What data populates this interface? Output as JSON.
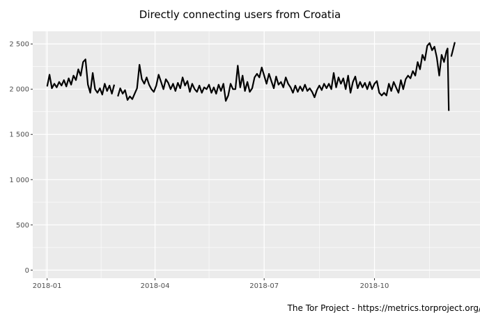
{
  "chart_data": {
    "type": "line",
    "title": "Directly connecting users from Croatia",
    "caption": "The Tor Project - https://metrics.torproject.org/",
    "xlabel": "",
    "ylabel": "",
    "x_ticks": [
      "2018-01",
      "2018-04",
      "2018-07",
      "2018-10"
    ],
    "y_ticks": [
      "0",
      "500",
      "1 000",
      "1 500",
      "2 000",
      "2 500"
    ],
    "ylim": [
      -90,
      2640
    ],
    "xlim": [
      "2017-12-20",
      "2018-12-28"
    ],
    "grid": true,
    "background": "#ebebeb",
    "line_color": "#000000",
    "series": [
      {
        "points": [
          [
            "2018-01-01",
            2030
          ],
          [
            "2018-01-03",
            2160
          ],
          [
            "2018-01-05",
            2010
          ],
          [
            "2018-01-07",
            2060
          ],
          [
            "2018-01-09",
            2020
          ],
          [
            "2018-01-11",
            2080
          ],
          [
            "2018-01-13",
            2040
          ],
          [
            "2018-01-15",
            2100
          ],
          [
            "2018-01-17",
            2030
          ],
          [
            "2018-01-19",
            2120
          ],
          [
            "2018-01-21",
            2050
          ],
          [
            "2018-01-23",
            2150
          ],
          [
            "2018-01-25",
            2100
          ],
          [
            "2018-01-27",
            2220
          ],
          [
            "2018-01-29",
            2150
          ],
          [
            "2018-01-31",
            2300
          ],
          [
            "2018-02-02",
            2330
          ],
          [
            "2018-02-04",
            2050
          ],
          [
            "2018-02-06",
            1960
          ],
          [
            "2018-02-08",
            2180
          ],
          [
            "2018-02-10",
            2000
          ],
          [
            "2018-02-12",
            1960
          ],
          [
            "2018-02-14",
            2010
          ],
          [
            "2018-02-16",
            1940
          ],
          [
            "2018-02-18",
            2060
          ],
          [
            "2018-02-20",
            1980
          ],
          [
            "2018-02-22",
            2040
          ],
          [
            "2018-02-24",
            1950
          ],
          [
            "2018-02-26",
            2050
          ],
          null,
          [
            "2018-03-01",
            1920
          ],
          [
            "2018-03-03",
            2010
          ],
          [
            "2018-03-05",
            1950
          ],
          [
            "2018-03-07",
            1990
          ],
          [
            "2018-03-09",
            1880
          ],
          [
            "2018-03-11",
            1920
          ],
          [
            "2018-03-13",
            1890
          ],
          [
            "2018-03-15",
            1950
          ],
          [
            "2018-03-17",
            2010
          ],
          [
            "2018-03-19",
            2270
          ],
          [
            "2018-03-21",
            2110
          ],
          [
            "2018-03-23",
            2060
          ],
          [
            "2018-03-25",
            2130
          ],
          [
            "2018-03-27",
            2050
          ],
          [
            "2018-03-29",
            2000
          ],
          [
            "2018-03-31",
            1970
          ],
          [
            "2018-04-02",
            2040
          ],
          [
            "2018-04-04",
            2160
          ],
          [
            "2018-04-06",
            2080
          ],
          [
            "2018-04-08",
            2000
          ],
          [
            "2018-04-10",
            2110
          ],
          [
            "2018-04-12",
            2070
          ],
          [
            "2018-04-14",
            2000
          ],
          [
            "2018-04-16",
            2060
          ],
          [
            "2018-04-18",
            1980
          ],
          [
            "2018-04-20",
            2070
          ],
          [
            "2018-04-22",
            2010
          ],
          [
            "2018-04-24",
            2130
          ],
          [
            "2018-04-26",
            2040
          ],
          [
            "2018-04-28",
            2090
          ],
          [
            "2018-04-30",
            1970
          ],
          [
            "2018-05-02",
            2060
          ],
          [
            "2018-05-04",
            2000
          ],
          [
            "2018-05-06",
            1970
          ],
          [
            "2018-05-08",
            2040
          ],
          [
            "2018-05-10",
            1960
          ],
          [
            "2018-05-12",
            2020
          ],
          [
            "2018-05-14",
            2000
          ],
          [
            "2018-05-16",
            2050
          ],
          [
            "2018-05-18",
            1960
          ],
          [
            "2018-05-20",
            2020
          ],
          [
            "2018-05-22",
            1950
          ],
          [
            "2018-05-24",
            2050
          ],
          [
            "2018-05-26",
            1980
          ],
          [
            "2018-05-28",
            2060
          ],
          [
            "2018-05-30",
            1870
          ],
          [
            "2018-06-01",
            1930
          ],
          [
            "2018-06-03",
            2060
          ],
          [
            "2018-06-05",
            2000
          ],
          [
            "2018-06-07",
            2000
          ],
          [
            "2018-06-09",
            2260
          ],
          [
            "2018-06-11",
            2020
          ],
          [
            "2018-06-13",
            2150
          ],
          [
            "2018-06-15",
            1980
          ],
          [
            "2018-06-17",
            2080
          ],
          [
            "2018-06-19",
            1970
          ],
          [
            "2018-06-21",
            2010
          ],
          [
            "2018-06-23",
            2130
          ],
          [
            "2018-06-25",
            2170
          ],
          [
            "2018-06-27",
            2130
          ],
          [
            "2018-06-29",
            2240
          ],
          [
            "2018-07-01",
            2150
          ],
          [
            "2018-07-03",
            2060
          ],
          [
            "2018-07-05",
            2170
          ],
          [
            "2018-07-07",
            2090
          ],
          [
            "2018-07-09",
            2010
          ],
          [
            "2018-07-11",
            2140
          ],
          [
            "2018-07-13",
            2050
          ],
          [
            "2018-07-15",
            2080
          ],
          [
            "2018-07-17",
            2020
          ],
          [
            "2018-07-19",
            2130
          ],
          [
            "2018-07-21",
            2060
          ],
          [
            "2018-07-23",
            2020
          ],
          [
            "2018-07-25",
            1960
          ],
          [
            "2018-07-27",
            2040
          ],
          [
            "2018-07-29",
            1970
          ],
          [
            "2018-07-31",
            2030
          ],
          [
            "2018-08-02",
            1980
          ],
          [
            "2018-08-04",
            2050
          ],
          [
            "2018-08-06",
            1980
          ],
          [
            "2018-08-08",
            2010
          ],
          [
            "2018-08-10",
            1970
          ],
          [
            "2018-08-12",
            1910
          ],
          [
            "2018-08-14",
            1990
          ],
          [
            "2018-08-16",
            2040
          ],
          [
            "2018-08-18",
            1990
          ],
          [
            "2018-08-20",
            2060
          ],
          [
            "2018-08-22",
            2010
          ],
          [
            "2018-08-24",
            2060
          ],
          [
            "2018-08-26",
            2000
          ],
          [
            "2018-08-28",
            2180
          ],
          [
            "2018-08-30",
            2020
          ],
          [
            "2018-09-01",
            2130
          ],
          [
            "2018-09-03",
            2060
          ],
          [
            "2018-09-05",
            2120
          ],
          [
            "2018-09-07",
            2000
          ],
          [
            "2018-09-09",
            2150
          ],
          [
            "2018-09-11",
            1960
          ],
          [
            "2018-09-13",
            2080
          ],
          [
            "2018-09-15",
            2140
          ],
          [
            "2018-09-17",
            2010
          ],
          [
            "2018-09-19",
            2080
          ],
          [
            "2018-09-21",
            2020
          ],
          [
            "2018-09-23",
            2070
          ],
          [
            "2018-09-25",
            2000
          ],
          [
            "2018-09-27",
            2080
          ],
          [
            "2018-09-29",
            2000
          ],
          [
            "2018-10-01",
            2060
          ],
          [
            "2018-10-03",
            2090
          ],
          [
            "2018-10-05",
            1960
          ],
          [
            "2018-10-07",
            1930
          ],
          [
            "2018-10-09",
            1960
          ],
          [
            "2018-10-11",
            1930
          ],
          [
            "2018-10-13",
            2060
          ],
          [
            "2018-10-15",
            1980
          ],
          [
            "2018-10-17",
            2080
          ],
          [
            "2018-10-19",
            2020
          ],
          [
            "2018-10-21",
            1960
          ],
          [
            "2018-10-23",
            2100
          ],
          [
            "2018-10-25",
            2000
          ],
          [
            "2018-10-27",
            2110
          ],
          [
            "2018-10-29",
            2150
          ],
          [
            "2018-10-31",
            2120
          ],
          [
            "2018-11-02",
            2200
          ],
          [
            "2018-11-04",
            2150
          ],
          [
            "2018-11-06",
            2300
          ],
          [
            "2018-11-08",
            2220
          ],
          [
            "2018-11-10",
            2380
          ],
          [
            "2018-11-12",
            2320
          ],
          [
            "2018-11-14",
            2480
          ],
          [
            "2018-11-16",
            2510
          ],
          [
            "2018-11-18",
            2430
          ],
          [
            "2018-11-20",
            2470
          ],
          [
            "2018-11-22",
            2350
          ],
          [
            "2018-11-24",
            2150
          ],
          [
            "2018-11-26",
            2380
          ],
          [
            "2018-11-28",
            2300
          ],
          [
            "2018-11-30",
            2420
          ],
          [
            "2018-12-01",
            2450
          ],
          [
            "2018-12-02",
            1760
          ],
          null,
          [
            "2018-12-04",
            2360
          ],
          [
            "2018-12-07",
            2520
          ]
        ]
      }
    ]
  }
}
